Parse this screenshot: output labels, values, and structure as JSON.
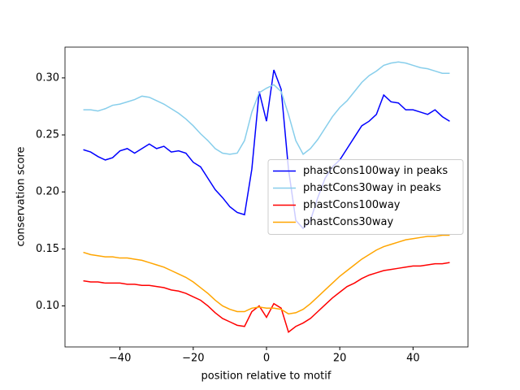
{
  "chart_data": {
    "type": "line",
    "xlabel": "position relative to motif",
    "ylabel": "conservation score",
    "x": [
      -50,
      -48,
      -46,
      -44,
      -42,
      -40,
      -38,
      -36,
      -34,
      -32,
      -30,
      -28,
      -26,
      -24,
      -22,
      -20,
      -18,
      -16,
      -14,
      -12,
      -10,
      -8,
      -6,
      -4,
      -2,
      0,
      2,
      4,
      6,
      8,
      10,
      12,
      14,
      16,
      18,
      20,
      22,
      24,
      26,
      28,
      30,
      32,
      34,
      36,
      38,
      40,
      42,
      44,
      46,
      48,
      50
    ],
    "series": [
      {
        "name": "phastCons100way in peaks",
        "color": "#0000ff",
        "values": [
          0.237,
          0.235,
          0.231,
          0.228,
          0.23,
          0.236,
          0.238,
          0.234,
          0.238,
          0.242,
          0.238,
          0.24,
          0.235,
          0.236,
          0.234,
          0.226,
          0.222,
          0.212,
          0.202,
          0.195,
          0.187,
          0.182,
          0.18,
          0.22,
          0.288,
          0.262,
          0.307,
          0.29,
          0.22,
          0.175,
          0.168,
          0.175,
          0.195,
          0.212,
          0.222,
          0.228,
          0.238,
          0.248,
          0.258,
          0.262,
          0.268,
          0.285,
          0.279,
          0.278,
          0.272,
          0.272,
          0.27,
          0.268,
          0.272,
          0.266,
          0.262
        ]
      },
      {
        "name": "phastCons30way in peaks",
        "color": "#87ceeb",
        "values": [
          0.272,
          0.272,
          0.271,
          0.273,
          0.276,
          0.277,
          0.279,
          0.281,
          0.284,
          0.283,
          0.28,
          0.277,
          0.273,
          0.269,
          0.264,
          0.258,
          0.251,
          0.245,
          0.238,
          0.234,
          0.233,
          0.234,
          0.245,
          0.27,
          0.287,
          0.291,
          0.294,
          0.288,
          0.268,
          0.245,
          0.233,
          0.238,
          0.246,
          0.256,
          0.266,
          0.274,
          0.28,
          0.288,
          0.296,
          0.302,
          0.306,
          0.311,
          0.313,
          0.314,
          0.313,
          0.311,
          0.309,
          0.308,
          0.306,
          0.304,
          0.304
        ]
      },
      {
        "name": "phastCons100way",
        "color": "#ff0000",
        "values": [
          0.122,
          0.121,
          0.121,
          0.12,
          0.12,
          0.12,
          0.119,
          0.119,
          0.118,
          0.118,
          0.117,
          0.116,
          0.114,
          0.113,
          0.111,
          0.108,
          0.105,
          0.1,
          0.094,
          0.089,
          0.086,
          0.083,
          0.082,
          0.095,
          0.1,
          0.09,
          0.102,
          0.098,
          0.077,
          0.082,
          0.085,
          0.089,
          0.095,
          0.101,
          0.107,
          0.112,
          0.117,
          0.12,
          0.124,
          0.127,
          0.129,
          0.131,
          0.132,
          0.133,
          0.134,
          0.135,
          0.135,
          0.136,
          0.137,
          0.137,
          0.138
        ]
      },
      {
        "name": "phastCons30way",
        "color": "#ffa500",
        "values": [
          0.147,
          0.145,
          0.144,
          0.143,
          0.143,
          0.142,
          0.142,
          0.141,
          0.14,
          0.138,
          0.136,
          0.134,
          0.131,
          0.128,
          0.125,
          0.121,
          0.116,
          0.111,
          0.105,
          0.1,
          0.097,
          0.095,
          0.095,
          0.098,
          0.099,
          0.098,
          0.098,
          0.097,
          0.093,
          0.094,
          0.097,
          0.102,
          0.108,
          0.114,
          0.12,
          0.126,
          0.131,
          0.136,
          0.141,
          0.145,
          0.149,
          0.152,
          0.154,
          0.156,
          0.158,
          0.159,
          0.16,
          0.161,
          0.161,
          0.162,
          0.162
        ]
      }
    ],
    "xlim": [
      -55,
      55
    ],
    "ylim": [
      0.064,
      0.327
    ],
    "xticks": [
      {
        "value": -40,
        "label": "−40"
      },
      {
        "value": -20,
        "label": "−20"
      },
      0,
      20,
      40
    ],
    "yticks": [
      {
        "value": 0.1,
        "label": "0.10"
      },
      0.15,
      {
        "value": 0.2,
        "label": "0.20"
      },
      0.25,
      {
        "value": 0.3,
        "label": "0.30"
      }
    ],
    "legend": "center right"
  }
}
